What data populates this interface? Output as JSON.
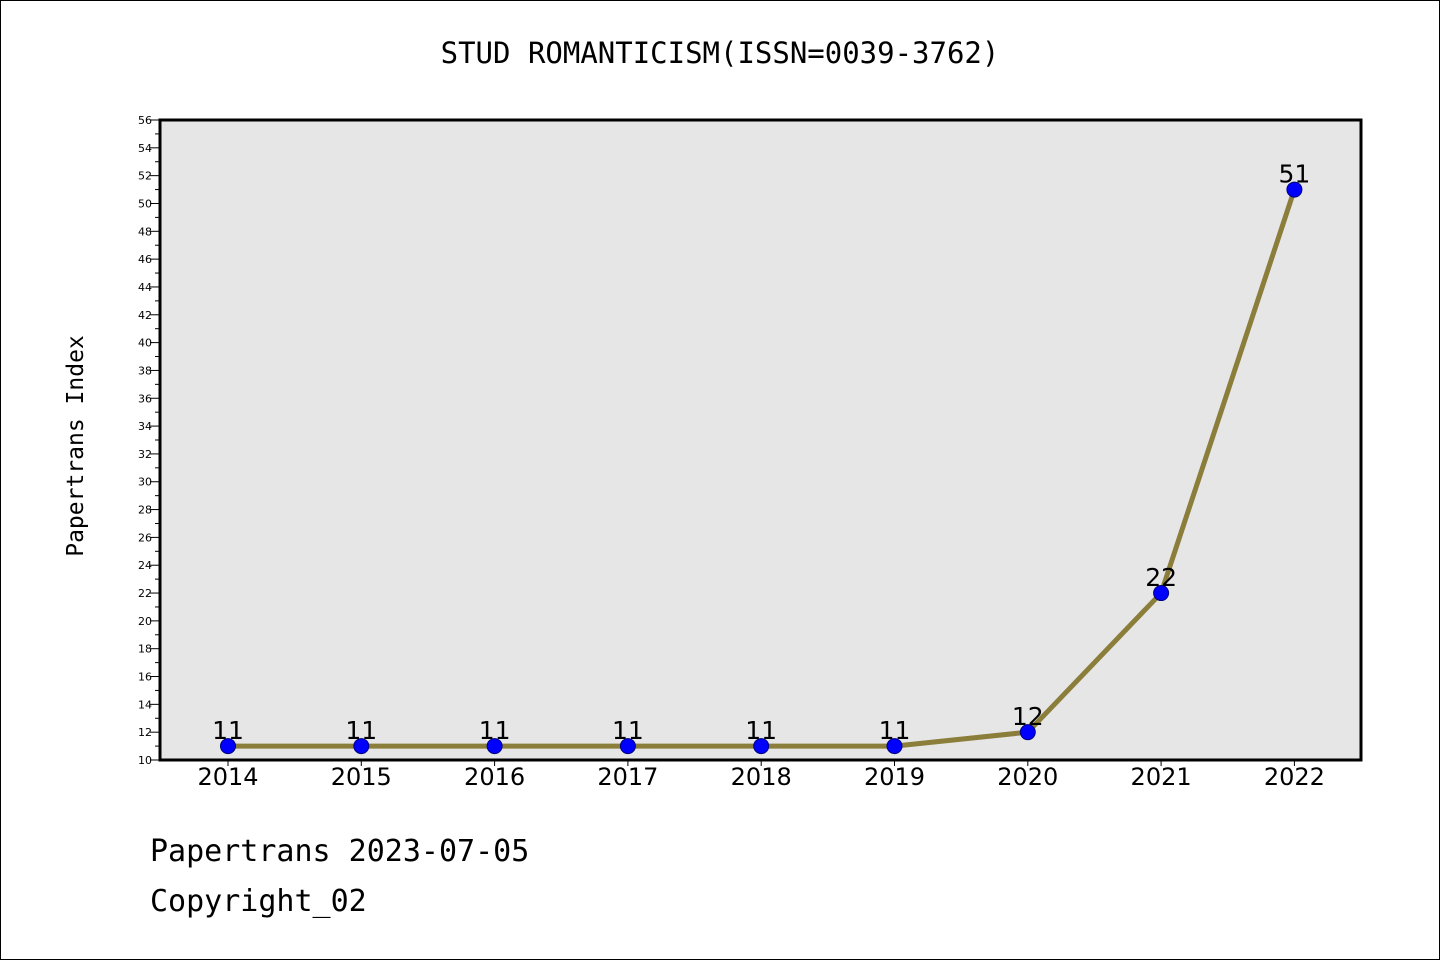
{
  "chart_data": {
    "type": "line",
    "title": "STUD ROMANTICISM(ISSN=0039-3762)",
    "xlabel": "",
    "ylabel": "Papertrans Index",
    "categories": [
      "2014",
      "2015",
      "2016",
      "2017",
      "2018",
      "2019",
      "2020",
      "2021",
      "2022"
    ],
    "series": [
      {
        "values": [
          11,
          11,
          11,
          11,
          11,
          11,
          12,
          22,
          51
        ]
      }
    ],
    "data_labels": [
      "11",
      "11",
      "11",
      "11",
      "11",
      "11",
      "12",
      "22",
      "51"
    ],
    "ylim": [
      10,
      56
    ],
    "y_major_step": 2,
    "y_ticks": [
      "10",
      "12",
      "14",
      "16",
      "18",
      "20",
      "22",
      "24",
      "26",
      "28",
      "30",
      "32",
      "34",
      "36",
      "38",
      "40",
      "42",
      "44",
      "46",
      "48",
      "50",
      "52",
      "54",
      "56"
    ],
    "grid": false,
    "legend": "none",
    "colors": {
      "line": "#8B7D3A",
      "marker_fill": "#0000FF",
      "marker_edge": "#000080",
      "plot_background": "#E6E6E6"
    }
  },
  "footer": {
    "line1": "Papertrans 2023-07-05",
    "line2": "Copyright_02"
  }
}
